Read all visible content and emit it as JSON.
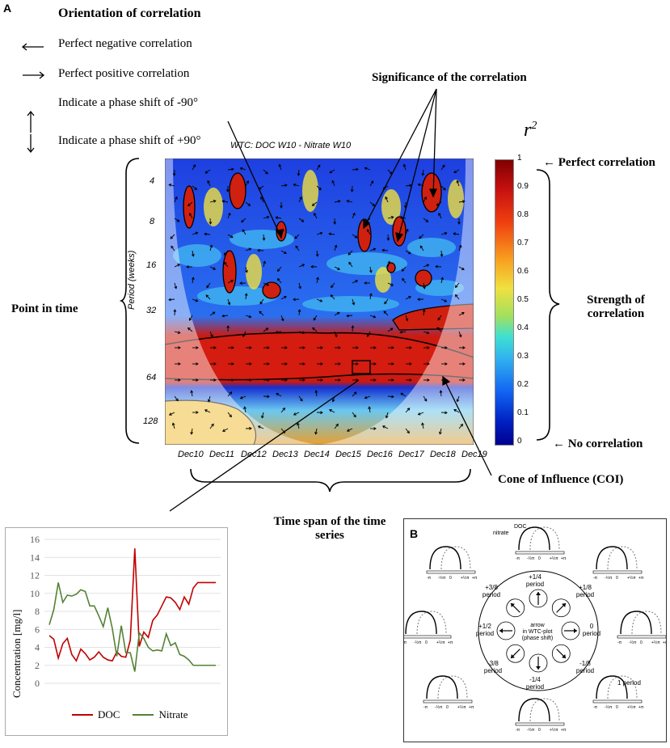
{
  "panel_a": {
    "label": "A",
    "legend_title": "Orientation of correlation",
    "legend_items": [
      {
        "arrow": "left-arrow",
        "text": "Perfect negative correlation"
      },
      {
        "arrow": "right-arrow",
        "text": "Perfect positive correlation"
      },
      {
        "arrow": "up-arrow",
        "text": "Indicate a phase shift of -90°"
      },
      {
        "arrow": "down-arrow",
        "text": "Indicate a phase shift of +90°"
      }
    ],
    "significance_label": "Significance of the correlation",
    "wtc_title": "WTC: DOC W10 - Nitrate W10",
    "period_axis_label": "Period (weeks)",
    "period_ticks": [
      "4",
      "8",
      "16",
      "32",
      "64",
      "128"
    ],
    "time_ticks": [
      "Dec10",
      "Dec11",
      "Dec12",
      "Dec13",
      "Dec14",
      "Dec15",
      "Dec16",
      "Dec17",
      "Dec18",
      "Dec19"
    ],
    "point_in_time": "Point in time",
    "colorbar_title": "r",
    "colorbar_exp": "2",
    "colorbar_ticks": [
      "1",
      "0.9",
      "0.8",
      "0.7",
      "0.6",
      "0.5",
      "0.4",
      "0.3",
      "0.2",
      "0.1",
      "0"
    ],
    "perfect_corr": "← Perfect correlation",
    "no_corr": "← No correlation",
    "strength_line1": "Strength of",
    "strength_line2": "correlation",
    "coi_label": "Cone of Influence (COI)",
    "time_span_line1": "Time span of the time",
    "time_span_line2": "series"
  },
  "line_chart": {
    "ylabel": "Concentration [mg/l]",
    "legend": [
      "DOC",
      "Nitrate"
    ]
  },
  "chart_data": {
    "type": "line",
    "title": "",
    "xlabel": "",
    "ylabel": "Concentration [mg/l]",
    "ylim": [
      0,
      16
    ],
    "yticks": [
      0,
      2,
      4,
      6,
      8,
      10,
      12,
      14,
      16
    ],
    "grid": true,
    "legend_position": "bottom",
    "x": [
      1,
      2,
      3,
      4,
      5,
      6,
      7,
      8,
      9,
      10,
      11,
      12,
      13,
      14,
      15,
      16,
      17,
      18,
      19,
      20,
      21,
      22,
      23,
      24,
      25,
      26,
      27,
      28,
      29,
      30,
      31,
      32,
      33,
      34,
      35,
      36,
      37,
      38
    ],
    "series": [
      {
        "name": "DOC",
        "color": "#c00000",
        "values": [
          5.3,
          4.9,
          2.8,
          4.4,
          5.0,
          3.2,
          2.5,
          3.8,
          3.3,
          2.6,
          2.9,
          3.5,
          2.9,
          2.6,
          2.5,
          3.5,
          3.0,
          2.9,
          4.8,
          15.0,
          4.1,
          5.7,
          5.1,
          7.0,
          7.6,
          8.6,
          9.6,
          9.5,
          9.0,
          8.2,
          9.6,
          8.8,
          10.6,
          11.2,
          11.2,
          11.2,
          11.2,
          11.2
        ]
      },
      {
        "name": "Nitrate",
        "color": "#548235",
        "values": [
          6.5,
          8.2,
          11.2,
          9.0,
          9.8,
          9.7,
          9.9,
          10.4,
          10.2,
          8.6,
          8.6,
          7.5,
          6.3,
          8.4,
          6.1,
          3.0,
          6.4,
          3.4,
          3.4,
          1.3,
          5.6,
          5.0,
          4.0,
          3.6,
          3.7,
          3.6,
          5.5,
          4.2,
          4.5,
          3.2,
          3.0,
          2.6,
          2.0,
          2.0,
          2.0,
          2.0,
          2.0,
          2.0
        ]
      }
    ]
  },
  "panel_b": {
    "label": "B",
    "center_line1": "arrow",
    "center_line2": "in WTC-plot",
    "center_line3": "(phase shift)",
    "doc_label": "DOC",
    "nitrate_label": "nitrate",
    "one_period": "1 period",
    "phases": [
      {
        "top": "+1/4",
        "bottom": "period"
      },
      {
        "top": "+1/8",
        "bottom": "period"
      },
      {
        "top": "0",
        "bottom": "period"
      },
      {
        "top": "-1/8",
        "bottom": "period"
      },
      {
        "top": "-1/4",
        "bottom": "period"
      },
      {
        "top": "-3/8",
        "bottom": "period"
      },
      {
        "top": "+1/2",
        "bottom": "period"
      },
      {
        "top": "+3/8",
        "bottom": "period"
      }
    ],
    "axis_ticks": [
      "-π",
      "-½π",
      "0",
      "+½π",
      "+π"
    ]
  }
}
